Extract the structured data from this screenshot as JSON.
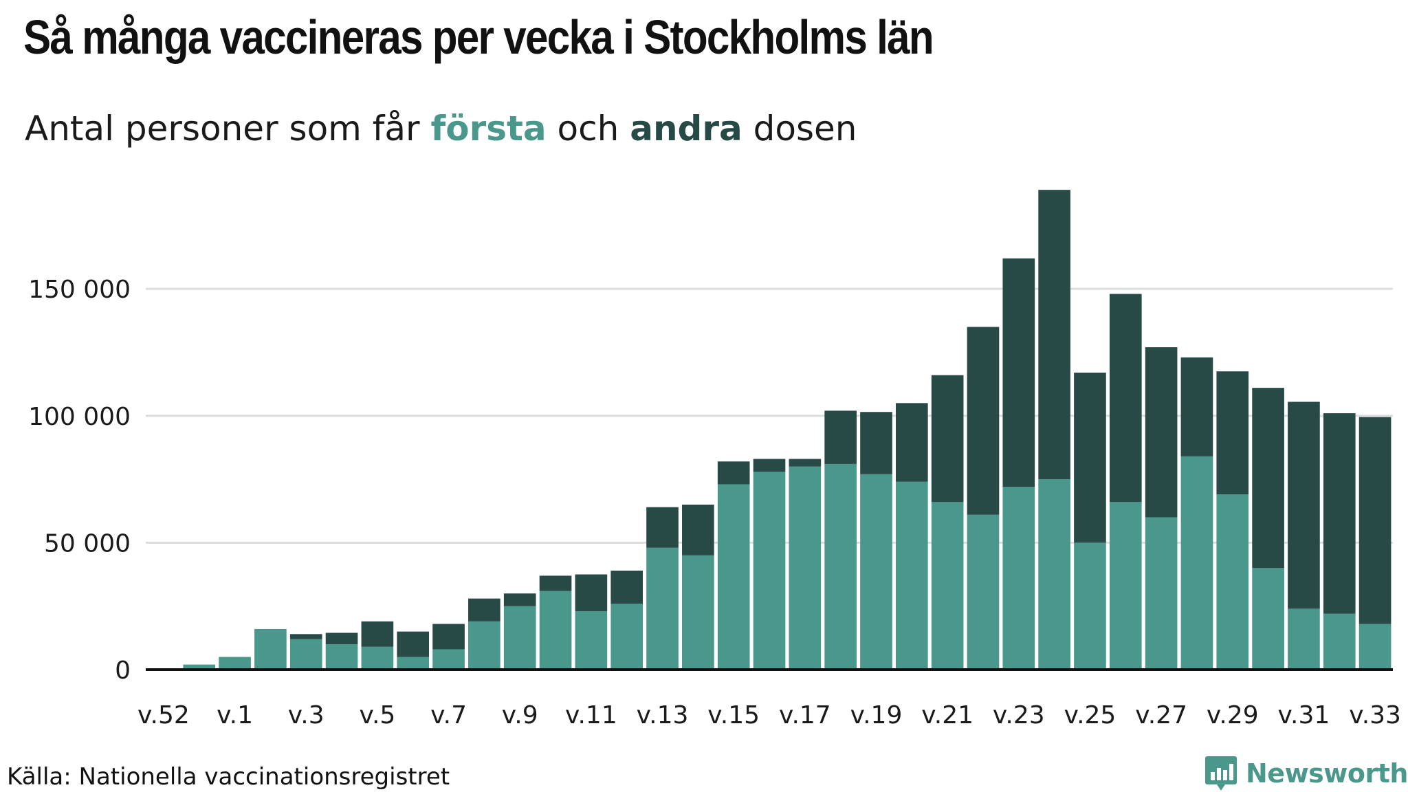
{
  "title": "Så många vaccineras per vecka i Stockholms län",
  "subtitle": {
    "prefix": "Antal personer som får ",
    "first": "första",
    "middle": " och ",
    "second": "andra",
    "suffix": " dosen"
  },
  "source": "Källa: Nationella vaccinationsregistret",
  "brand": "Newsworthy",
  "chart_data": {
    "type": "bar",
    "stacked": true,
    "categories": [
      "v.52",
      "v.53",
      "v.1",
      "v.2",
      "v.3",
      "v.4",
      "v.5",
      "v.6",
      "v.7",
      "v.8",
      "v.9",
      "v.10",
      "v.11",
      "v.12",
      "v.13",
      "v.14",
      "v.15",
      "v.16",
      "v.17",
      "v.18",
      "v.19",
      "v.20",
      "v.21",
      "v.22",
      "v.23",
      "v.24",
      "v.25",
      "v.26",
      "v.27",
      "v.28",
      "v.29",
      "v.30",
      "v.31",
      "v.32",
      "v.33"
    ],
    "tick_labels": [
      "v.52",
      "v.1",
      "v.3",
      "v.5",
      "v.7",
      "v.9",
      "v.11",
      "v.13",
      "v.15",
      "v.17",
      "v.19",
      "v.21",
      "v.23",
      "v.25",
      "v.27",
      "v.29",
      "v.31",
      "v.33"
    ],
    "series": [
      {
        "name": "första",
        "color": "#4a978b",
        "values": [
          0,
          2000,
          5000,
          16000,
          12000,
          10000,
          9000,
          5000,
          8000,
          19000,
          25000,
          31000,
          23000,
          26000,
          48000,
          45000,
          73000,
          78000,
          80000,
          81000,
          77000,
          74000,
          66000,
          61000,
          72000,
          75000,
          50000,
          66000,
          60000,
          84000,
          69000,
          40000,
          24000,
          22000,
          18000
        ]
      },
      {
        "name": "andra",
        "color": "#274a46",
        "values": [
          0,
          0,
          0,
          0,
          2000,
          4500,
          10000,
          10000,
          10000,
          9000,
          5000,
          6000,
          14500,
          13000,
          16000,
          20000,
          9000,
          5000,
          3000,
          21000,
          24500,
          31000,
          50000,
          74000,
          90000,
          114000,
          67000,
          82000,
          67000,
          39000,
          48500,
          71000,
          81500,
          79000,
          81500
        ]
      }
    ],
    "yticks": [
      0,
      50000,
      100000,
      150000
    ],
    "ytick_labels": [
      "0",
      "50 000",
      "100 000",
      "150 000"
    ],
    "ylim": [
      0,
      195000
    ],
    "grid": true,
    "legend": "subtitle"
  }
}
